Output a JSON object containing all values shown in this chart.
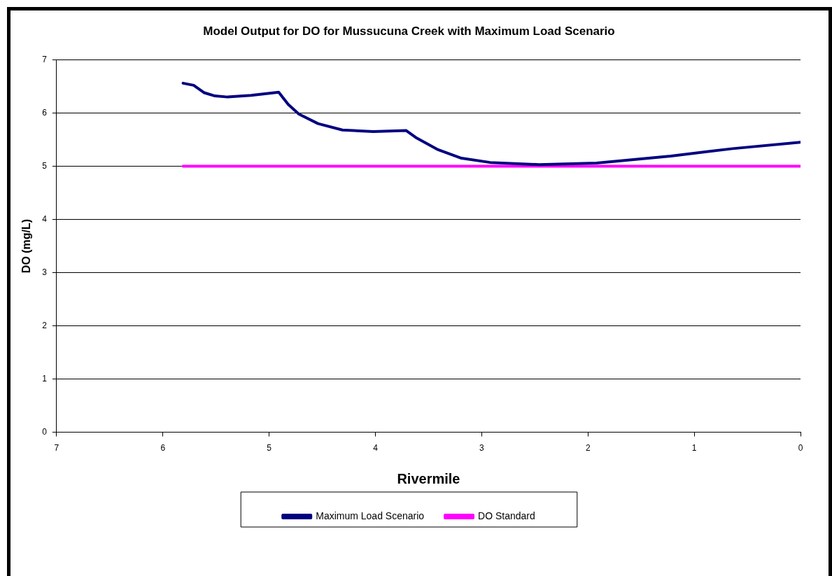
{
  "chart_data": {
    "type": "line",
    "title": "Model Output for DO for Mussucuna Creek with Maximum Load Scenario",
    "xlabel": "Rivermile",
    "ylabel": "DO (mg/L)",
    "xlim": [
      7,
      0
    ],
    "xticks": [
      7,
      6,
      5,
      4,
      3,
      2,
      1,
      0
    ],
    "ylim": [
      0,
      7
    ],
    "yticks": [
      0,
      1,
      2,
      3,
      4,
      5,
      6,
      7
    ],
    "grid": "y",
    "legend": "bottom",
    "marker": "none",
    "line_style": "solid",
    "series": [
      {
        "name": "Maximum Load Scenario",
        "color": "#000080",
        "x": [
          5.81,
          5.71,
          5.61,
          5.51,
          5.39,
          5.17,
          4.91,
          4.82,
          4.72,
          4.54,
          4.31,
          4.02,
          3.71,
          3.62,
          3.41,
          3.19,
          2.92,
          2.46,
          1.92,
          1.22,
          0.64,
          0
        ],
        "values": [
          6.56,
          6.52,
          6.38,
          6.32,
          6.3,
          6.33,
          6.39,
          6.16,
          5.98,
          5.8,
          5.68,
          5.65,
          5.67,
          5.54,
          5.31,
          5.15,
          5.07,
          5.03,
          5.06,
          5.19,
          5.33,
          5.45
        ]
      },
      {
        "name": "DO Standard",
        "color": "#ff00ff",
        "x": [
          5.81,
          0
        ],
        "values": [
          5,
          5
        ]
      }
    ]
  }
}
